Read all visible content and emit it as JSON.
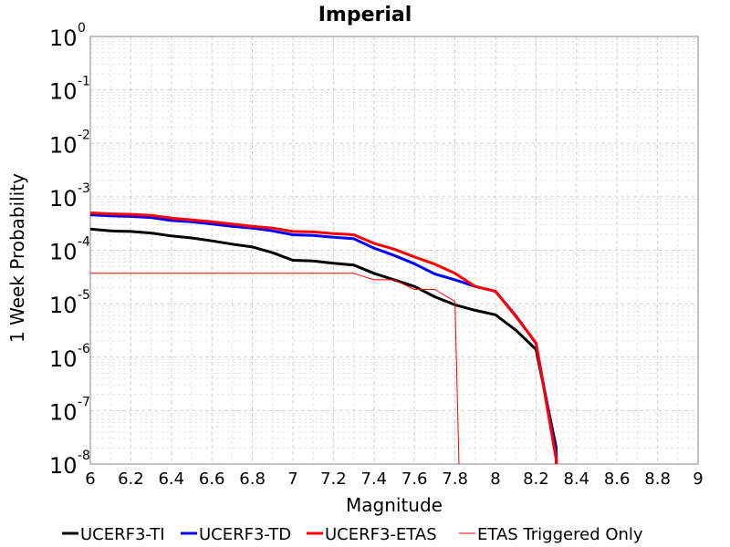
{
  "chart_data": {
    "type": "line",
    "title": "Imperial",
    "xlabel": "Magnitude",
    "ylabel": "1 Week Probability",
    "xlim": [
      6,
      9
    ],
    "ylim": [
      1e-08,
      1
    ],
    "yscale": "log",
    "grid": true,
    "legend_position": "bottom",
    "xticks": [
      "6",
      "6.2",
      "6.4",
      "6.6",
      "6.8",
      "7",
      "7.2",
      "7.4",
      "7.6",
      "7.8",
      "8",
      "8.2",
      "8.4",
      "8.6",
      "8.8",
      "9"
    ],
    "yticks": [
      {
        "base": "10",
        "exp": "0"
      },
      {
        "base": "10",
        "exp": "-1"
      },
      {
        "base": "10",
        "exp": "-2"
      },
      {
        "base": "10",
        "exp": "-3"
      },
      {
        "base": "10",
        "exp": "-4"
      },
      {
        "base": "10",
        "exp": "-5"
      },
      {
        "base": "10",
        "exp": "-6"
      },
      {
        "base": "10",
        "exp": "-7"
      },
      {
        "base": "10",
        "exp": "-8"
      }
    ],
    "series": [
      {
        "name": "UCERF3-TI",
        "color": "#000000",
        "width": 3,
        "x": [
          6.0,
          6.1,
          6.2,
          6.3,
          6.4,
          6.5,
          6.6,
          6.7,
          6.8,
          6.9,
          7.0,
          7.1,
          7.2,
          7.3,
          7.4,
          7.5,
          7.6,
          7.7,
          7.8,
          7.9,
          8.0,
          8.1,
          8.2,
          8.3,
          8.3
        ],
        "y": [
          0.00025,
          0.00023,
          0.000225,
          0.00021,
          0.000185,
          0.00017,
          0.00015,
          0.00013,
          0.000115,
          9e-05,
          6.5e-05,
          6.3e-05,
          5.7e-05,
          5.3e-05,
          3.7e-05,
          2.8e-05,
          2.1e-05,
          1.35e-05,
          9.5e-06,
          7.5e-06,
          6.2e-06,
          3.2e-06,
          1.4e-06,
          2e-08,
          1e-08
        ]
      },
      {
        "name": "UCERF3-TD",
        "color": "#0000ff",
        "width": 3,
        "x": [
          6.0,
          6.1,
          6.2,
          6.3,
          6.4,
          6.5,
          6.6,
          6.7,
          6.8,
          6.9,
          7.0,
          7.1,
          7.2,
          7.3,
          7.4,
          7.5,
          7.6,
          7.7,
          7.8,
          7.9,
          8.0,
          8.1,
          8.2,
          8.3,
          8.3
        ],
        "y": [
          0.00046,
          0.00044,
          0.00043,
          0.00041,
          0.00036,
          0.00034,
          0.00031,
          0.00028,
          0.00026,
          0.00023,
          0.000195,
          0.00019,
          0.000175,
          0.000165,
          0.00011,
          8e-05,
          5.6e-05,
          3.6e-05,
          2.8e-05,
          2.1e-05,
          1.7e-05,
          6e-06,
          1.8e-06,
          1.5e-08,
          1e-08
        ]
      },
      {
        "name": "UCERF3-ETAS",
        "color": "#ff0000",
        "width": 3,
        "x": [
          6.0,
          6.1,
          6.2,
          6.3,
          6.4,
          6.5,
          6.6,
          6.7,
          6.8,
          6.9,
          7.0,
          7.1,
          7.2,
          7.3,
          7.4,
          7.5,
          7.6,
          7.7,
          7.8,
          7.9,
          8.0,
          8.1,
          8.2,
          8.3,
          8.3
        ],
        "y": [
          0.0005,
          0.00048,
          0.00047,
          0.00045,
          0.0004,
          0.00037,
          0.00034,
          0.00031,
          0.00028,
          0.00026,
          0.000225,
          0.00022,
          0.000205,
          0.000195,
          0.000135,
          0.000105,
          7.5e-05,
          5.5e-05,
          3.7e-05,
          2.1e-05,
          1.7e-05,
          5.8e-06,
          1.85e-06,
          1.2e-08,
          1e-08
        ]
      },
      {
        "name": "ETAS Triggered Only",
        "color": "#ff0000",
        "width": 1,
        "x": [
          6.0,
          7.3,
          7.4,
          7.5,
          7.6,
          7.7,
          7.8,
          7.82
        ],
        "y": [
          3.7e-05,
          3.7e-05,
          2.8e-05,
          2.8e-05,
          1.85e-05,
          1.85e-05,
          1.1e-05,
          1e-08
        ]
      }
    ]
  }
}
